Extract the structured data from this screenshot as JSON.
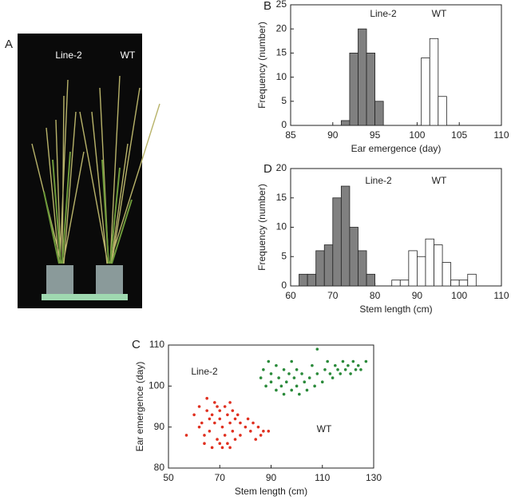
{
  "photo": {
    "label": "A",
    "annotations": [
      "Line-2",
      "WT"
    ]
  },
  "chart_data": [
    {
      "type": "histogram",
      "panel": "B",
      "xlabel": "Ear emergence (day)",
      "ylabel": "Frequency (number)",
      "xlim": [
        85,
        110
      ],
      "xticks": [
        85,
        90,
        95,
        100,
        105,
        110
      ],
      "ylim": [
        0,
        25
      ],
      "yticks": [
        0,
        5,
        10,
        15,
        20,
        25
      ],
      "series": [
        {
          "name": "Line-2",
          "color": "#808080",
          "bins": [
            91,
            92,
            93,
            94,
            95,
            96
          ],
          "values": [
            1,
            15,
            20,
            15,
            5
          ]
        },
        {
          "name": "WT",
          "color": "#ffffff",
          "bins": [
            100.5,
            101.5,
            102.5,
            103.5
          ],
          "values": [
            14,
            18,
            6
          ]
        }
      ]
    },
    {
      "type": "histogram",
      "panel": "D",
      "xlabel": "Stem length (cm)",
      "ylabel": "Frequency (number)",
      "xlim": [
        60,
        110
      ],
      "xticks": [
        60,
        70,
        80,
        90,
        100,
        110
      ],
      "ylim": [
        0,
        20
      ],
      "yticks": [
        0,
        5,
        10,
        15,
        20
      ],
      "series": [
        {
          "name": "Line-2",
          "color": "#808080",
          "bins": [
            62,
            64,
            66,
            68,
            70,
            72,
            74,
            76,
            78,
            80
          ],
          "values": [
            2,
            2,
            6,
            7,
            15,
            17,
            10,
            6,
            2
          ]
        },
        {
          "name": "WT",
          "color": "#ffffff",
          "bins": [
            84,
            86,
            88,
            90,
            92,
            94,
            96,
            98,
            100,
            102,
            104
          ],
          "values": [
            1,
            1,
            6,
            5,
            8,
            7,
            4,
            1,
            1,
            2
          ]
        }
      ]
    },
    {
      "type": "scatter",
      "panel": "C",
      "xlabel": "Stem length (cm)",
      "ylabel": "Ear emergence (day)",
      "xlim": [
        50,
        130
      ],
      "xticks": [
        50,
        70,
        90,
        110,
        130
      ],
      "ylim": [
        80,
        110
      ],
      "yticks": [
        80,
        90,
        100,
        110
      ],
      "series": [
        {
          "name": "Line-2",
          "color": "#e03020",
          "x": [
            57,
            60,
            62,
            63,
            64,
            65,
            65,
            66,
            67,
            67,
            68,
            68,
            69,
            70,
            70,
            71,
            71,
            72,
            72,
            73,
            73,
            74,
            74,
            75,
            75,
            76,
            76,
            77,
            78,
            78,
            80,
            81,
            82,
            83,
            84,
            85,
            86,
            87,
            89,
            66,
            69,
            64,
            62,
            70,
            74
          ],
          "values": [
            88,
            93,
            95,
            91,
            86,
            94,
            97,
            89,
            93,
            85,
            96,
            91,
            87,
            94,
            92,
            85,
            90,
            95,
            88,
            93,
            86,
            91,
            96,
            89,
            94,
            87,
            92,
            93,
            88,
            91,
            90,
            92,
            89,
            91,
            87,
            90,
            88,
            89,
            89,
            92,
            95,
            88,
            90,
            86,
            85
          ]
        },
        {
          "name": "WT",
          "color": "#2a8a3a",
          "x": [
            86,
            87,
            88,
            89,
            90,
            90,
            92,
            92,
            93,
            94,
            95,
            95,
            96,
            97,
            98,
            98,
            99,
            100,
            100,
            101,
            102,
            103,
            104,
            105,
            106,
            107,
            108,
            108,
            110,
            111,
            112,
            113,
            114,
            115,
            116,
            117,
            118,
            119,
            120,
            121,
            122,
            123,
            124,
            125,
            127
          ],
          "values": [
            102,
            104,
            100,
            106,
            101,
            103,
            99,
            105,
            102,
            100,
            104,
            98,
            101,
            103,
            99,
            106,
            102,
            100,
            104,
            98,
            103,
            101,
            99,
            102,
            105,
            100,
            109,
            103,
            101,
            104,
            106,
            103,
            102,
            105,
            104,
            103,
            106,
            104,
            105,
            103,
            106,
            104,
            105,
            104,
            106
          ]
        }
      ]
    }
  ]
}
